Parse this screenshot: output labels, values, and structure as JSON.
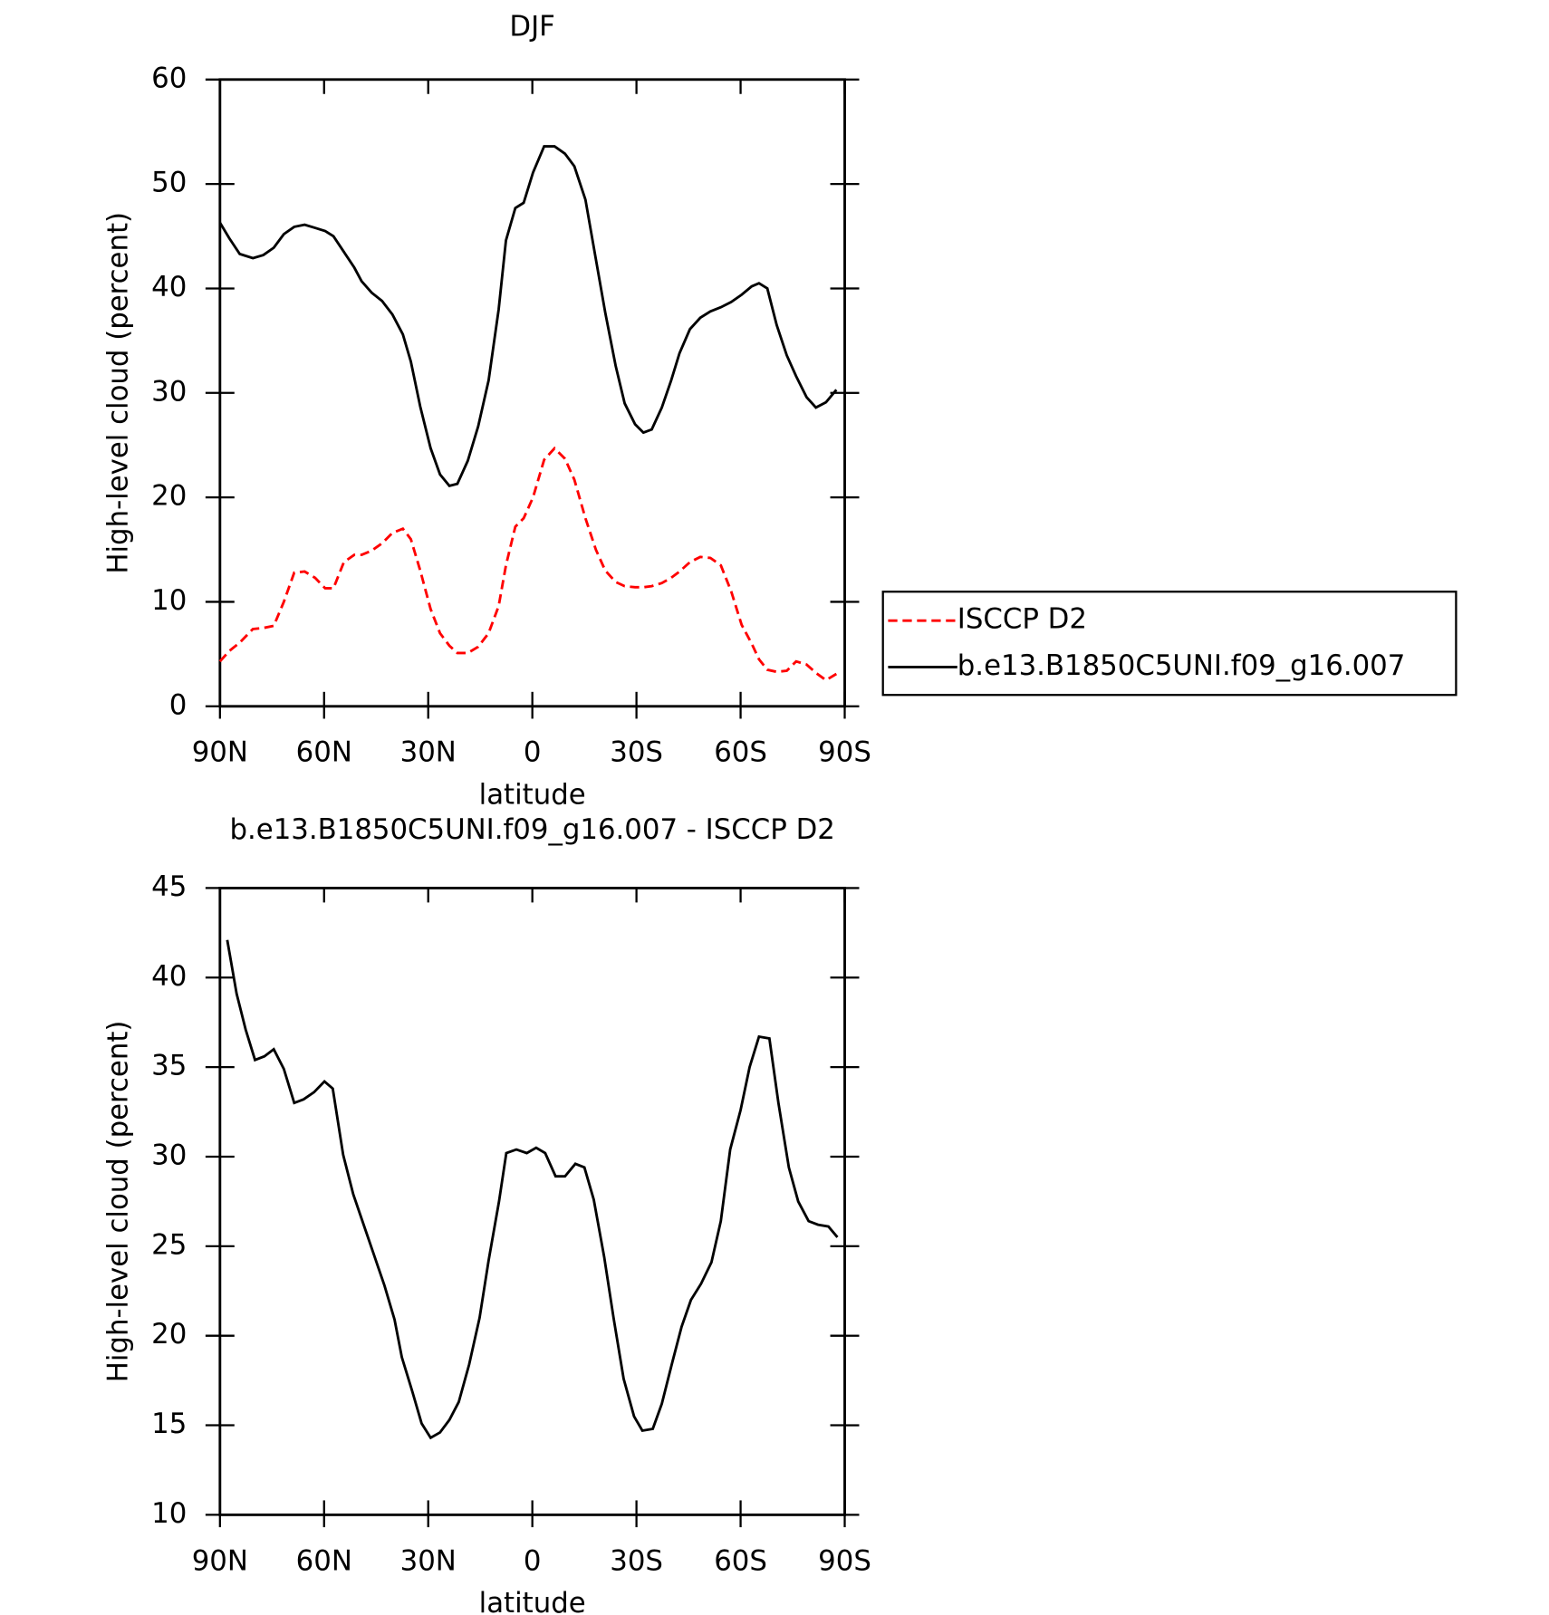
{
  "chart_data": [
    {
      "type": "line",
      "title": "DJF",
      "xlabel": "latitude",
      "ylabel": "High-level cloud (percent)",
      "xlim": [
        90,
        -90
      ],
      "xticks": [
        {
          "value": 90,
          "label": "90N"
        },
        {
          "value": 60,
          "label": "60N"
        },
        {
          "value": 30,
          "label": "30N"
        },
        0,
        {
          "value": -30,
          "label": "30S"
        },
        {
          "value": -60,
          "label": "60S"
        },
        {
          "value": -90,
          "label": "90S"
        }
      ],
      "ylim": [
        0,
        60
      ],
      "yticks": [
        0,
        10,
        20,
        30,
        40,
        50,
        60
      ],
      "legend": "right",
      "x": [
        90,
        87.3,
        84.3,
        80.5,
        77.5,
        74.5,
        71.6,
        68.6,
        65.6,
        62.6,
        59.7,
        57.3,
        54.3,
        51.3,
        49.2,
        46.3,
        43.3,
        40.3,
        37.3,
        35.0,
        32.3,
        29.3,
        26.6,
        23.9,
        21.6,
        18.6,
        15.6,
        12.6,
        9.7,
        7.6,
        4.9,
        2.5,
        -0.2,
        -3.4,
        -6.4,
        -9.4,
        -12.1,
        -15.3,
        -18.3,
        -21.0,
        -24.0,
        -26.6,
        -29.6,
        -32.0,
        -34.4,
        -37.3,
        -40.0,
        -42.4,
        -45.4,
        -48.4,
        -51.3,
        -54.3,
        -57.3,
        -60.3,
        -63.2,
        -65.3,
        -67.7,
        -70.4,
        -73.3,
        -76.0,
        -79.0,
        -81.7,
        -84.6,
        -87.6
      ],
      "series": [
        {
          "name": "ISCCP D2",
          "color": "#ff0000",
          "line_style": "dashed",
          "values": [
            4.3,
            5.3,
            6.1,
            7.4,
            7.5,
            7.7,
            10.0,
            12.8,
            12.9,
            12.3,
            11.3,
            11.3,
            13.8,
            14.5,
            14.5,
            14.9,
            15.6,
            16.6,
            17.0,
            16.0,
            13.0,
            9.3,
            7.0,
            5.8,
            5.1,
            5.1,
            5.7,
            7.0,
            9.6,
            13.5,
            17.2,
            18.0,
            20.0,
            23.6,
            24.7,
            23.7,
            21.7,
            18.0,
            15.0,
            13.0,
            11.9,
            11.5,
            11.4,
            11.4,
            11.5,
            11.8,
            12.3,
            12.9,
            13.8,
            14.3,
            14.2,
            13.5,
            11.0,
            7.8,
            6.0,
            4.5,
            3.5,
            3.3,
            3.4,
            4.3,
            4.0,
            3.2,
            2.5,
            3.1
          ]
        },
        {
          "name": "b.e13.B1850C5UNI.f09_g16.007",
          "color": "#000000",
          "line_style": "solid",
          "values": [
            46.3,
            44.8,
            43.3,
            42.9,
            43.2,
            43.9,
            45.2,
            45.9,
            46.1,
            45.8,
            45.5,
            45.0,
            43.5,
            42.0,
            40.7,
            39.6,
            38.8,
            37.5,
            35.6,
            33.0,
            28.7,
            24.7,
            22.2,
            21.1,
            21.3,
            23.5,
            26.8,
            31.2,
            38.0,
            44.6,
            47.7,
            48.2,
            51.1,
            53.6,
            53.6,
            52.9,
            51.7,
            48.5,
            42.8,
            37.7,
            32.6,
            29.0,
            27.0,
            26.2,
            26.5,
            28.6,
            31.2,
            33.8,
            36.1,
            37.2,
            37.8,
            38.2,
            38.7,
            39.4,
            40.2,
            40.5,
            40.0,
            36.5,
            33.6,
            31.6,
            29.6,
            28.6,
            29.1,
            30.3
          ]
        }
      ]
    },
    {
      "type": "line",
      "title": "b.e13.B1850C5UNI.f09_g16.007 - ISCCP D2",
      "xlabel": "latitude",
      "ylabel": "High-level cloud (percent)",
      "xlim": [
        90,
        -90
      ],
      "xticks": [
        {
          "value": 90,
          "label": "90N"
        },
        {
          "value": 60,
          "label": "60N"
        },
        {
          "value": 30,
          "label": "30N"
        },
        0,
        {
          "value": -30,
          "label": "30S"
        },
        {
          "value": -60,
          "label": "60S"
        },
        {
          "value": -90,
          "label": "90S"
        }
      ],
      "ylim": [
        10,
        45
      ],
      "yticks": [
        10,
        15,
        20,
        25,
        30,
        35,
        40,
        45
      ],
      "x": [
        87.9,
        85.2,
        82.6,
        79.9,
        77.2,
        74.5,
        71.6,
        68.6,
        65.9,
        62.9,
        59.9,
        57.5,
        54.5,
        51.6,
        48.6,
        45.6,
        42.6,
        39.7,
        37.6,
        34.6,
        31.9,
        29.3,
        26.6,
        23.9,
        21.2,
        18.2,
        15.2,
        12.6,
        9.6,
        7.5,
        4.6,
        1.6,
        -1.1,
        -3.7,
        -6.7,
        -9.4,
        -12.4,
        -15.0,
        -17.7,
        -20.7,
        -23.4,
        -26.3,
        -29.3,
        -31.7,
        -34.7,
        -37.3,
        -40.3,
        -43.0,
        -45.7,
        -48.6,
        -51.6,
        -54.3,
        -57.0,
        -60.0,
        -62.6,
        -65.3,
        -68.3,
        -70.9,
        -73.9,
        -76.6,
        -79.6,
        -82.3,
        -85.3,
        -87.9
      ],
      "series": [
        {
          "color": "#000000",
          "line_style": "solid",
          "values": [
            42.1,
            39.1,
            37.1,
            35.4,
            35.6,
            36.0,
            34.9,
            33.0,
            33.2,
            33.6,
            34.2,
            33.8,
            30.1,
            27.9,
            26.2,
            24.5,
            22.8,
            20.9,
            18.8,
            16.9,
            15.1,
            14.3,
            14.6,
            15.3,
            16.3,
            18.4,
            21.0,
            24.2,
            27.5,
            30.2,
            30.4,
            30.2,
            30.5,
            30.2,
            28.9,
            28.9,
            29.6,
            29.4,
            27.6,
            24.4,
            21.0,
            17.6,
            15.5,
            14.7,
            14.8,
            16.2,
            18.5,
            20.5,
            22.0,
            22.9,
            24.1,
            26.4,
            30.4,
            32.6,
            35.0,
            36.7,
            36.6,
            33.0,
            29.4,
            27.5,
            26.4,
            26.2,
            26.1,
            25.5
          ]
        }
      ]
    }
  ]
}
